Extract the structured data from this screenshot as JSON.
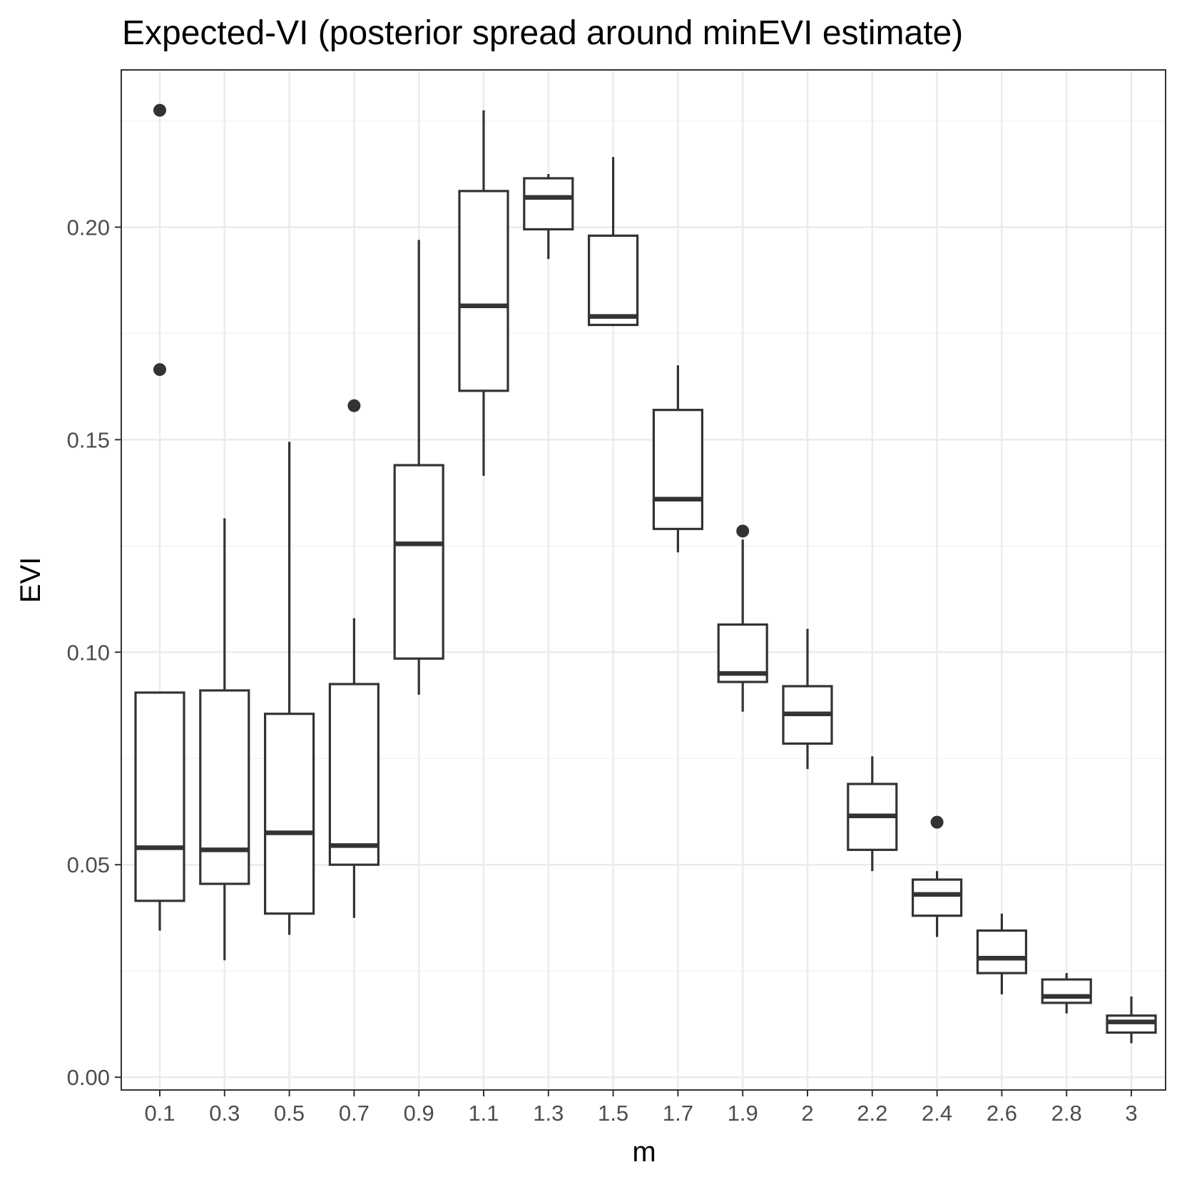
{
  "chart_data": {
    "type": "boxplot",
    "title": "Expected-VI (posterior spread around minEVI estimate)",
    "xlabel": "m",
    "ylabel": "EVI",
    "ylim": [
      -0.003,
      0.237
    ],
    "yticks": [
      0.0,
      0.05,
      0.1,
      0.15,
      0.2
    ],
    "ytick_labels": [
      "0.00",
      "0.05",
      "0.10",
      "0.15",
      "0.20"
    ],
    "grid": true,
    "categories": [
      "0.1",
      "0.3",
      "0.5",
      "0.7",
      "0.9",
      "1.1",
      "1.3",
      "1.5",
      "1.7",
      "1.9",
      "2",
      "2.2",
      "2.4",
      "2.6",
      "2.8",
      "3"
    ],
    "boxes": [
      {
        "whisker_low": 0.0345,
        "q1": 0.0415,
        "median": 0.054,
        "q3": 0.0905,
        "whisker_high": 0.0905,
        "outliers": [
          0.1665,
          0.2275
        ]
      },
      {
        "whisker_low": 0.0275,
        "q1": 0.0455,
        "median": 0.0535,
        "q3": 0.091,
        "whisker_high": 0.1315,
        "outliers": []
      },
      {
        "whisker_low": 0.0335,
        "q1": 0.0385,
        "median": 0.0575,
        "q3": 0.0855,
        "whisker_high": 0.1495,
        "outliers": []
      },
      {
        "whisker_low": 0.0375,
        "q1": 0.05,
        "median": 0.0545,
        "q3": 0.0925,
        "whisker_high": 0.108,
        "outliers": [
          0.158
        ]
      },
      {
        "whisker_low": 0.09,
        "q1": 0.0985,
        "median": 0.1255,
        "q3": 0.144,
        "whisker_high": 0.197,
        "outliers": []
      },
      {
        "whisker_low": 0.1415,
        "q1": 0.1615,
        "median": 0.1815,
        "q3": 0.2085,
        "whisker_high": 0.2275,
        "outliers": []
      },
      {
        "whisker_low": 0.1925,
        "q1": 0.1995,
        "median": 0.207,
        "q3": 0.2115,
        "whisker_high": 0.2125,
        "outliers": []
      },
      {
        "whisker_low": 0.177,
        "q1": 0.177,
        "median": 0.179,
        "q3": 0.198,
        "whisker_high": 0.2165,
        "outliers": []
      },
      {
        "whisker_low": 0.1235,
        "q1": 0.129,
        "median": 0.136,
        "q3": 0.157,
        "whisker_high": 0.1675,
        "outliers": []
      },
      {
        "whisker_low": 0.086,
        "q1": 0.093,
        "median": 0.095,
        "q3": 0.1065,
        "whisker_high": 0.1265,
        "outliers": [
          0.1285
        ]
      },
      {
        "whisker_low": 0.0725,
        "q1": 0.0785,
        "median": 0.0855,
        "q3": 0.092,
        "whisker_high": 0.1055,
        "outliers": []
      },
      {
        "whisker_low": 0.0485,
        "q1": 0.0535,
        "median": 0.0615,
        "q3": 0.069,
        "whisker_high": 0.0755,
        "outliers": []
      },
      {
        "whisker_low": 0.033,
        "q1": 0.038,
        "median": 0.043,
        "q3": 0.0465,
        "whisker_high": 0.0485,
        "outliers": [
          0.06
        ]
      },
      {
        "whisker_low": 0.0195,
        "q1": 0.0245,
        "median": 0.028,
        "q3": 0.0345,
        "whisker_high": 0.0385,
        "outliers": []
      },
      {
        "whisker_low": 0.015,
        "q1": 0.0175,
        "median": 0.019,
        "q3": 0.023,
        "whisker_high": 0.0245,
        "outliers": []
      },
      {
        "whisker_low": 0.008,
        "q1": 0.0105,
        "median": 0.013,
        "q3": 0.0145,
        "whisker_high": 0.019,
        "outliers": []
      }
    ]
  },
  "colors": {
    "background": "#ffffff",
    "panel_border": "#333333",
    "grid_major": "#ebebeb",
    "grid_minor": "#f3f3f3",
    "box_stroke": "#333333",
    "outlier": "#333333",
    "tick_text": "#4d4d4d",
    "title_text": "#000000"
  }
}
